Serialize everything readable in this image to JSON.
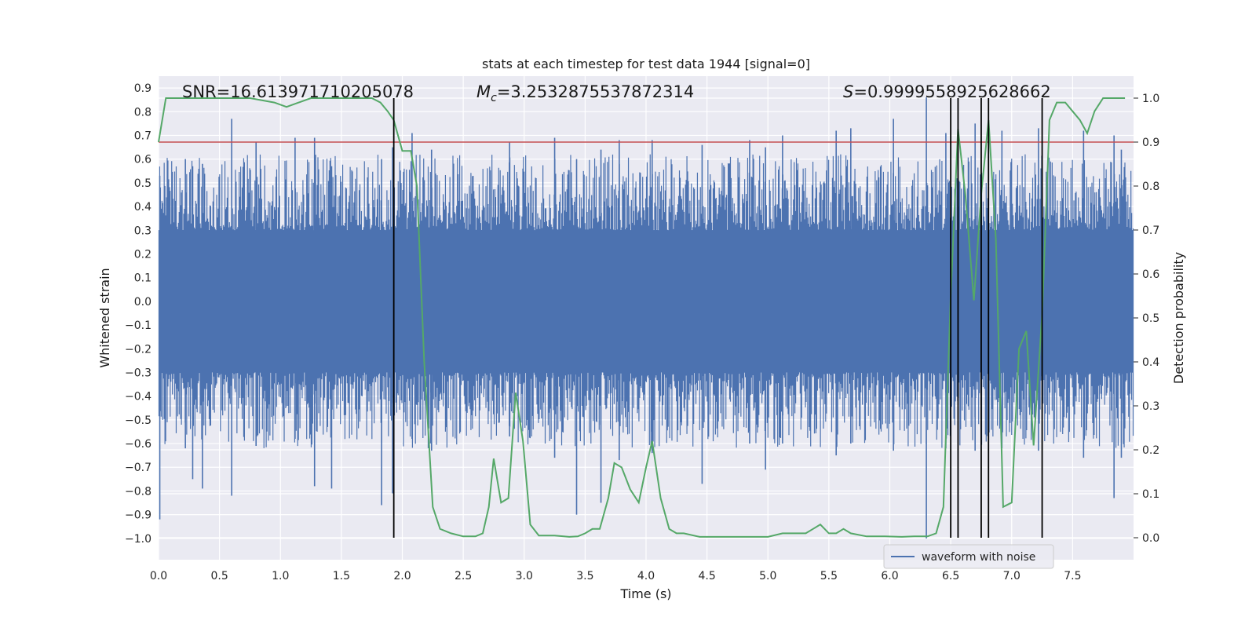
{
  "chart_data": {
    "type": "line",
    "title": "stats at each timestep for test data 1944 [signal=0]",
    "xlabel": "Time (s)",
    "ylabel_left": "Whitened strain",
    "ylabel_right": "Detection probability",
    "xlim": [
      0.0,
      8.0
    ],
    "ylim_left": [
      -1.09,
      0.95
    ],
    "ylim_right": [
      -0.05,
      1.05
    ],
    "x_ticks": [
      0.0,
      0.5,
      1.0,
      1.5,
      2.0,
      2.5,
      3.0,
      3.5,
      4.0,
      4.5,
      5.0,
      5.5,
      6.0,
      6.5,
      7.0,
      7.5
    ],
    "x_tick_labels": [
      "0.0",
      "0.5",
      "1.0",
      "1.5",
      "2.0",
      "2.5",
      "3.0",
      "3.5",
      "4.0",
      "4.5",
      "5.0",
      "5.5",
      "6.0",
      "6.5",
      "7.0",
      "7.5"
    ],
    "y_left_ticks": [
      0.9,
      0.8,
      0.7,
      0.6,
      0.5,
      0.4,
      0.3,
      0.2,
      0.1,
      0.0,
      -0.1,
      -0.2,
      -0.3,
      -0.4,
      -0.5,
      -0.6,
      -0.7,
      -0.8,
      -0.9,
      -1.0
    ],
    "y_left_tick_labels": [
      "0.9",
      "0.8",
      "0.7",
      "0.6",
      "0.5",
      "0.4",
      "0.3",
      "0.2",
      "0.1",
      "0.0",
      "−0.1",
      "−0.2",
      "−0.3",
      "−0.4",
      "−0.5",
      "−0.6",
      "−0.7",
      "−0.8",
      "−0.9",
      "−1.0"
    ],
    "y_right_ticks": [
      1.0,
      0.9,
      0.8,
      0.7,
      0.6,
      0.5,
      0.4,
      0.3,
      0.2,
      0.1,
      0.0
    ],
    "y_right_tick_labels": [
      "1.0",
      "0.9",
      "0.8",
      "0.7",
      "0.6",
      "0.5",
      "0.4",
      "0.3",
      "0.2",
      "0.1",
      "0.0"
    ],
    "annotations": {
      "snr": "SNR=16.613971710205078",
      "mc_prefix": "M",
      "mc_sub": "c",
      "mc_value": "=3.2532875537872314",
      "s_prefix": "S",
      "s_value": "=0.9999558925628662"
    },
    "threshold": {
      "value": 0.9,
      "axis": "right",
      "color": "#c44e52"
    },
    "vertical_markers": [
      1.93,
      6.5,
      6.56,
      6.75,
      6.81,
      7.25
    ],
    "waveform": {
      "name": "waveform with noise",
      "color": "#4c72b0",
      "band_min": -0.3,
      "band_max": 0.3,
      "spikes": [
        {
          "t": 0.01,
          "lo": -0.92,
          "hi": 0.53
        },
        {
          "t": 0.22,
          "lo": -0.62,
          "hi": 0.6
        },
        {
          "t": 0.28,
          "lo": -0.75,
          "hi": 0.57
        },
        {
          "t": 0.36,
          "lo": -0.79,
          "hi": 0.58
        },
        {
          "t": 0.6,
          "lo": -0.82,
          "hi": 0.77
        },
        {
          "t": 0.8,
          "lo": -0.61,
          "hi": 0.67
        },
        {
          "t": 1.12,
          "lo": -0.58,
          "hi": 0.69
        },
        {
          "t": 1.28,
          "lo": -0.78,
          "hi": 0.69
        },
        {
          "t": 1.42,
          "lo": -0.79,
          "hi": 0.57
        },
        {
          "t": 1.83,
          "lo": -0.86,
          "hi": 0.6
        },
        {
          "t": 1.92,
          "lo": -0.81,
          "hi": 0.65
        },
        {
          "t": 2.08,
          "lo": -0.58,
          "hi": 0.71
        },
        {
          "t": 2.24,
          "lo": -0.63,
          "hi": 0.64
        },
        {
          "t": 2.88,
          "lo": -0.57,
          "hi": 0.67
        },
        {
          "t": 2.99,
          "lo": -0.35,
          "hi": 0.56
        },
        {
          "t": 3.25,
          "lo": -0.66,
          "hi": 0.69
        },
        {
          "t": 3.43,
          "lo": -0.9,
          "hi": 0.6
        },
        {
          "t": 3.63,
          "lo": -0.85,
          "hi": 0.64
        },
        {
          "t": 3.78,
          "lo": -0.67,
          "hi": 0.68
        },
        {
          "t": 4.05,
          "lo": -0.64,
          "hi": 0.68
        },
        {
          "t": 4.46,
          "lo": -0.77,
          "hi": 0.66
        },
        {
          "t": 4.85,
          "lo": -0.6,
          "hi": 0.68
        },
        {
          "t": 4.98,
          "lo": -0.71,
          "hi": 0.65
        },
        {
          "t": 5.12,
          "lo": -0.6,
          "hi": 0.7
        },
        {
          "t": 5.56,
          "lo": -0.65,
          "hi": 0.72
        },
        {
          "t": 5.68,
          "lo": -0.6,
          "hi": 0.73
        },
        {
          "t": 6.03,
          "lo": -0.63,
          "hi": 0.77
        },
        {
          "t": 6.3,
          "lo": -1.0,
          "hi": 0.86
        },
        {
          "t": 6.46,
          "lo": -0.62,
          "hi": 0.71
        },
        {
          "t": 6.7,
          "lo": -0.63,
          "hi": 0.75
        },
        {
          "t": 6.92,
          "lo": -0.62,
          "hi": 0.72
        },
        {
          "t": 7.22,
          "lo": -0.63,
          "hi": 0.73
        },
        {
          "t": 7.59,
          "lo": -0.66,
          "hi": 0.72
        },
        {
          "t": 7.84,
          "lo": -0.83,
          "hi": 0.7
        },
        {
          "t": 7.9,
          "lo": -0.66,
          "hi": 0.64
        }
      ]
    },
    "probability": {
      "name": "detection probability",
      "color": "#55a868",
      "x": [
        0.0,
        0.06,
        0.12,
        0.25,
        0.5,
        0.75,
        0.95,
        1.05,
        1.15,
        1.25,
        1.5,
        1.75,
        1.82,
        1.88,
        1.93,
        2.0,
        2.07,
        2.12,
        2.18,
        2.25,
        2.31,
        2.4,
        2.5,
        2.6,
        2.66,
        2.71,
        2.75,
        2.81,
        2.87,
        2.93,
        2.99,
        3.05,
        3.12,
        3.25,
        3.37,
        3.44,
        3.5,
        3.56,
        3.62,
        3.69,
        3.74,
        3.8,
        3.87,
        3.94,
        4.0,
        4.05,
        4.12,
        4.19,
        4.25,
        4.31,
        4.44,
        4.6,
        4.8,
        5.0,
        5.12,
        5.2,
        5.31,
        5.37,
        5.43,
        5.5,
        5.56,
        5.62,
        5.68,
        5.81,
        5.96,
        6.1,
        6.2,
        6.31,
        6.38,
        6.44,
        6.5,
        6.56,
        6.62,
        6.69,
        6.75,
        6.81,
        6.87,
        6.93,
        7.0,
        7.06,
        7.12,
        7.18,
        7.25,
        7.31,
        7.37,
        7.44,
        7.5,
        7.56,
        7.62,
        7.68,
        7.75,
        7.81,
        7.93
      ],
      "y": [
        0.9,
        1.0,
        1.0,
        1.0,
        1.0,
        1.0,
        0.99,
        0.98,
        0.99,
        1.0,
        1.0,
        1.0,
        0.99,
        0.97,
        0.95,
        0.88,
        0.88,
        0.8,
        0.4,
        0.07,
        0.02,
        0.01,
        0.003,
        0.003,
        0.01,
        0.07,
        0.18,
        0.08,
        0.09,
        0.33,
        0.22,
        0.03,
        0.005,
        0.005,
        0.002,
        0.003,
        0.01,
        0.02,
        0.02,
        0.09,
        0.17,
        0.16,
        0.11,
        0.08,
        0.16,
        0.22,
        0.09,
        0.02,
        0.01,
        0.01,
        0.002,
        0.002,
        0.002,
        0.002,
        0.01,
        0.01,
        0.01,
        0.02,
        0.03,
        0.01,
        0.01,
        0.02,
        0.01,
        0.003,
        0.003,
        0.002,
        0.003,
        0.003,
        0.01,
        0.07,
        0.55,
        0.93,
        0.78,
        0.54,
        0.78,
        0.95,
        0.68,
        0.07,
        0.08,
        0.43,
        0.47,
        0.21,
        0.51,
        0.95,
        0.99,
        0.99,
        0.97,
        0.95,
        0.92,
        0.97,
        1.0,
        1.0,
        1.0
      ]
    },
    "legend": {
      "location": "lower-right",
      "entries": [
        "waveform with noise"
      ]
    }
  }
}
